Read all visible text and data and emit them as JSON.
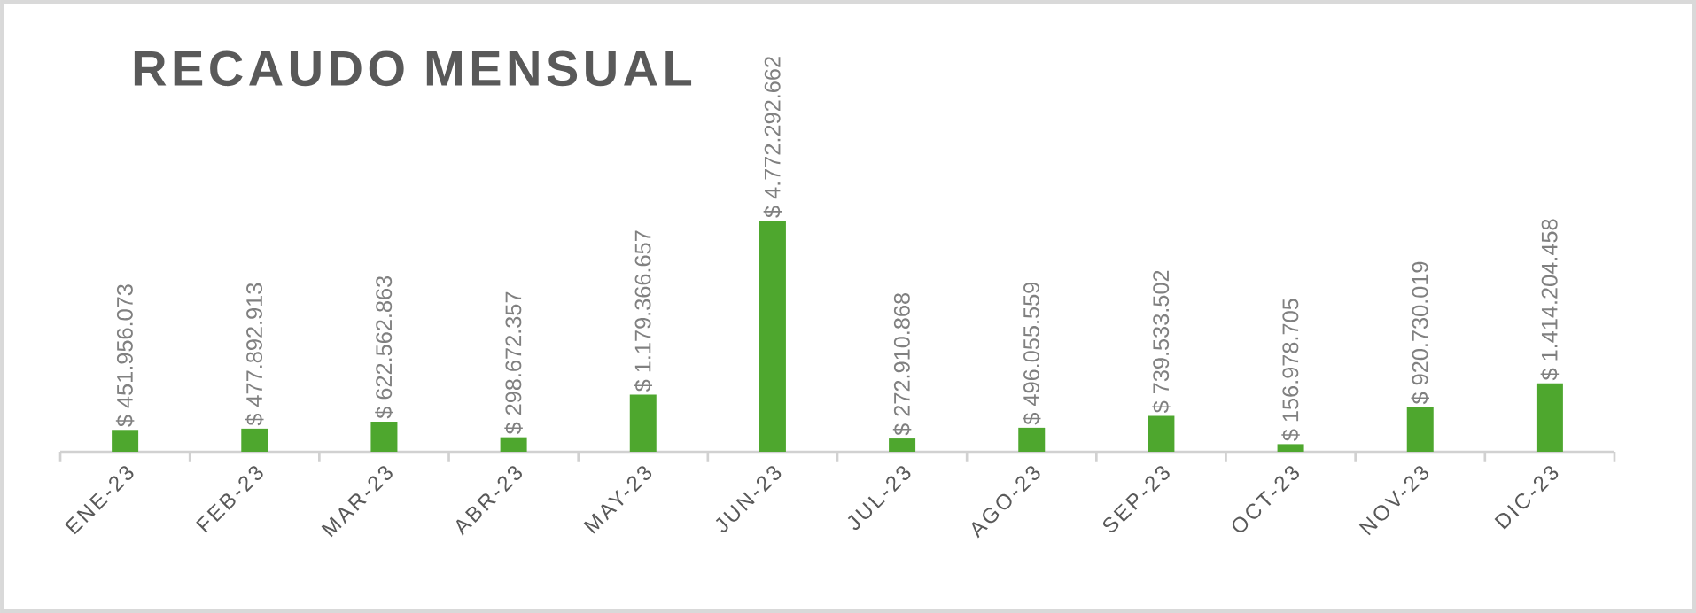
{
  "chart_data": {
    "type": "bar",
    "title": "RECAUDO MENSUAL",
    "categories": [
      "ENE-23",
      "FEB-23",
      "MAR-23",
      "ABR-23",
      "MAY-23",
      "JUN-23",
      "JUL-23",
      "AGO-23",
      "SEP-23",
      "OCT-23",
      "NOV-23",
      "DIC-23"
    ],
    "values": [
      451956073,
      477892913,
      622562863,
      298672357,
      1179366657,
      4772292662,
      272910868,
      496055559,
      739533502,
      156978705,
      920730019,
      1414204458
    ],
    "value_labels": [
      "$ 451.956.073",
      "$ 477.892.913",
      "$ 622.562.863",
      "$ 298.672.357",
      "$ 1.179.366.657",
      "$ 4.772.292.662",
      "$ 272.910.868",
      "$ 496.055.559",
      "$ 739.533.502",
      "$ 156.978.705",
      "$ 920.730.019",
      "$ 1.414.204.458"
    ],
    "color": "#4ea72e"
  }
}
